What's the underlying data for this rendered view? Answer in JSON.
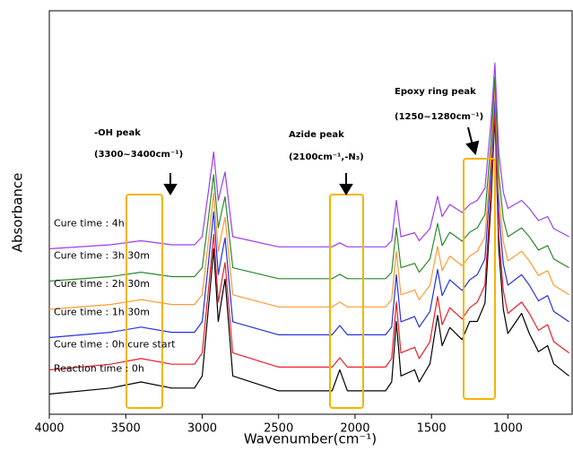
{
  "chart_data": {
    "type": "line",
    "xlabel": "Wavenumber(cm⁻¹)",
    "ylabel": "Absorbance",
    "annotations": [
      "-OH peak",
      "(3300~3400cm⁻¹)",
      "Azide peak",
      "(2100cm⁻¹,-N₃)",
      "Epoxy ring peak",
      "(1250~1280cm⁻¹)"
    ],
    "xlim": [
      4000,
      580
    ],
    "xticks": [
      4000,
      3500,
      3000,
      2500,
      2000,
      1500,
      1000
    ],
    "ylim": [
      0,
      100
    ],
    "x": [
      4000,
      3600,
      3400,
      3200,
      3050,
      3000,
      2960,
      2925,
      2895,
      2870,
      2850,
      2800,
      2500,
      2150,
      2100,
      2050,
      1800,
      1760,
      1730,
      1700,
      1610,
      1580,
      1510,
      1460,
      1430,
      1380,
      1300,
      1250,
      1200,
      1150,
      1110,
      1085,
      1060,
      1030,
      1000,
      910,
      860,
      800,
      740,
      700,
      600
    ],
    "series": [
      {
        "name": "Reaction time : 0h",
        "color": "#000000",
        "values": [
          5,
          6.5,
          8,
          6.5,
          6.5,
          9.5,
          26,
          41,
          23,
          29,
          33.5,
          9.5,
          5.8,
          5.8,
          11,
          5.8,
          5.8,
          8,
          23,
          9.5,
          11,
          8,
          12.5,
          24.5,
          17,
          21.5,
          18.5,
          23,
          23,
          27.5,
          53,
          74,
          41,
          26,
          20,
          25,
          20,
          15.5,
          17,
          12.5,
          9.5
        ]
      },
      {
        "name": "Cure time : 0h cure start",
        "color": "#e8202a",
        "values": [
          11,
          12.4,
          13.8,
          12.4,
          12.4,
          15.2,
          30.6,
          44.6,
          27.8,
          33.4,
          37.6,
          15.2,
          11.7,
          11.7,
          14,
          11.7,
          11.7,
          13.8,
          27.8,
          15.2,
          16.6,
          13.8,
          18,
          29.2,
          22.2,
          26.4,
          23.6,
          26.4,
          27.8,
          32,
          55.8,
          75.4,
          44.6,
          30.6,
          25,
          27.8,
          25,
          20.8,
          22.2,
          18,
          15.2
        ]
      },
      {
        "name": "Cure time : 1h 30m",
        "color": "#2233dd",
        "values": [
          19,
          20.3,
          21.6,
          20.3,
          20.3,
          22.9,
          37.2,
          50.2,
          34.6,
          39.8,
          43.7,
          22.9,
          19.7,
          19.7,
          22,
          19.7,
          19.7,
          21.6,
          34.6,
          22.9,
          24.2,
          21.6,
          25.5,
          35.9,
          29.4,
          33.3,
          30.7,
          33.3,
          34.6,
          38.5,
          60.6,
          78.8,
          50.2,
          37.2,
          32,
          34.6,
          32,
          28.1,
          29.4,
          25.5,
          22.9
        ]
      },
      {
        "name": "Cure time : 2h 30m",
        "color": "#ff9a33",
        "values": [
          26,
          27.2,
          28.4,
          27.2,
          27.2,
          29.6,
          42.8,
          54.8,
          40.4,
          45.2,
          48.8,
          29.6,
          26.6,
          26.6,
          27.8,
          26.6,
          26.6,
          28.4,
          40.4,
          29.6,
          30.8,
          28.4,
          32,
          41.6,
          35.6,
          39.2,
          36.8,
          39.2,
          40.4,
          44,
          64.4,
          81.2,
          54.8,
          42.8,
          38,
          40.4,
          38,
          34.4,
          35.6,
          32,
          29.6
        ]
      },
      {
        "name": "Cure time : 3h 30m",
        "color": "#2a8a2a",
        "values": [
          33,
          34.1,
          35.2,
          34.1,
          34.1,
          36.3,
          48.4,
          59.4,
          46.2,
          50.6,
          53.9,
          36.3,
          33.6,
          33.6,
          34.7,
          33.6,
          33.6,
          35.2,
          46.2,
          36.3,
          37.4,
          35.2,
          38.5,
          47.3,
          41.8,
          45.1,
          42.9,
          45.1,
          46.2,
          49.5,
          68.2,
          83.6,
          59.4,
          48.4,
          44,
          46.2,
          44,
          40.7,
          41.8,
          38.5,
          36.3
        ]
      },
      {
        "name": "Cure time : 4h",
        "color": "#9b3ef0",
        "values": [
          41,
          42,
          43,
          42,
          42,
          44,
          55,
          65,
          53,
          57,
          60,
          44,
          41.5,
          41.5,
          42.5,
          41.5,
          41.5,
          43,
          53,
          44,
          45,
          43,
          46,
          54,
          49,
          52,
          50,
          52,
          53,
          56,
          73,
          87,
          65,
          55,
          51,
          53,
          51,
          48,
          49,
          46,
          44
        ]
      }
    ]
  }
}
